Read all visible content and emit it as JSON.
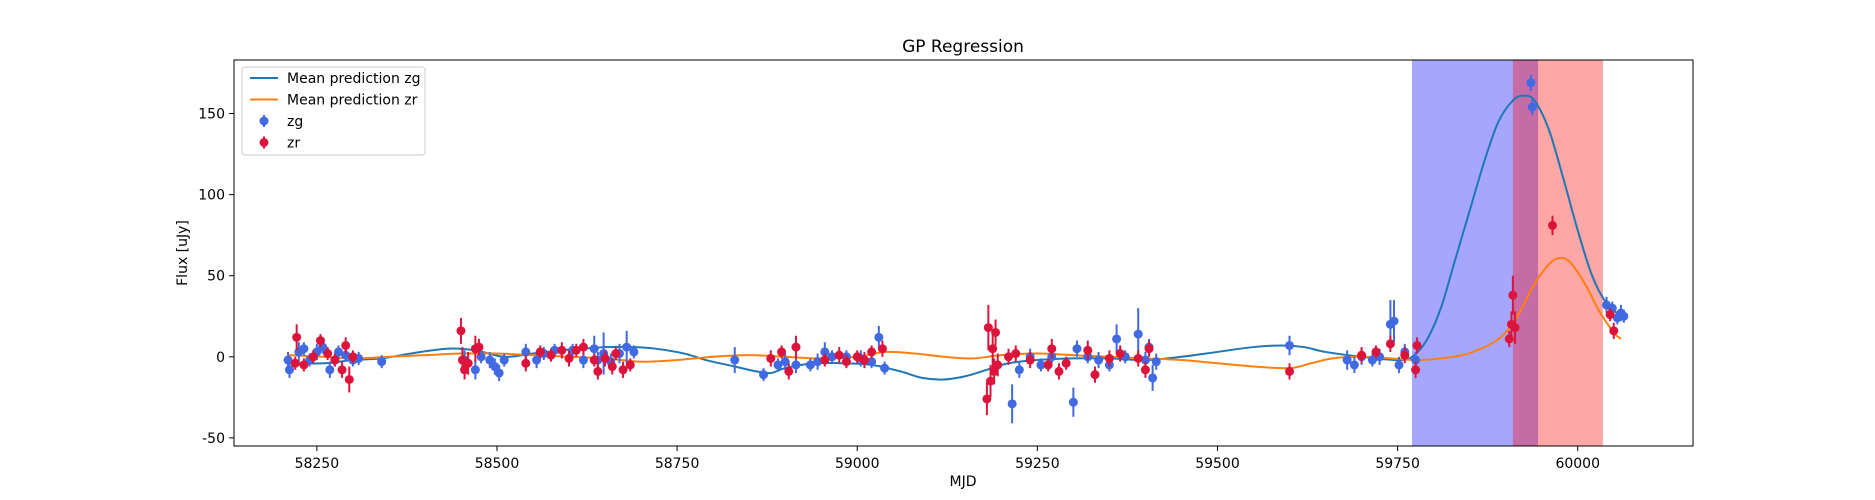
{
  "chart_data": {
    "type": "scatter",
    "title": "GP Regression",
    "xlabel": "MJD",
    "ylabel": "Flux [uJy]",
    "xlim": [
      58135,
      60160
    ],
    "ylim": [
      -55,
      183
    ],
    "xticks": [
      58250,
      58500,
      58750,
      59000,
      59250,
      59500,
      59750,
      60000
    ],
    "yticks": [
      -50,
      0,
      50,
      100,
      150
    ],
    "legend_position": "upper-left",
    "legend": [
      {
        "label": "Mean prediction zg",
        "kind": "line",
        "color": "#1f77b4"
      },
      {
        "label": "Mean prediction zr",
        "kind": "line",
        "color": "#ff7f0e"
      },
      {
        "label": "zg",
        "kind": "marker",
        "color": "#4169e1"
      },
      {
        "label": "zr",
        "kind": "marker",
        "color": "#dc143c"
      }
    ],
    "shaded_regions": [
      {
        "x0": 59770,
        "x1": 59945,
        "color": "#0000ff",
        "alpha": 0.35
      },
      {
        "x0": 59910,
        "x1": 60035,
        "color": "#ff0000",
        "alpha": 0.35
      }
    ],
    "curves": [
      {
        "name": "Mean prediction zg",
        "color": "#1f77b4",
        "points": [
          [
            58210,
            -4
          ],
          [
            58260,
            -4
          ],
          [
            58300,
            -2
          ],
          [
            58340,
            -1
          ],
          [
            58380,
            2
          ],
          [
            58430,
            5
          ],
          [
            58470,
            4
          ],
          [
            58510,
            0
          ],
          [
            58550,
            2
          ],
          [
            58590,
            4
          ],
          [
            58620,
            5
          ],
          [
            58650,
            6
          ],
          [
            58690,
            6
          ],
          [
            58720,
            5
          ],
          [
            58760,
            2
          ],
          [
            58790,
            -2
          ],
          [
            58830,
            -6
          ],
          [
            58860,
            -9
          ],
          [
            58880,
            -10
          ],
          [
            58900,
            -7
          ],
          [
            58940,
            -4
          ],
          [
            58980,
            -4
          ],
          [
            59020,
            -5
          ],
          [
            59060,
            -9
          ],
          [
            59090,
            -13
          ],
          [
            59120,
            -14
          ],
          [
            59150,
            -12
          ],
          [
            59180,
            -8
          ],
          [
            59210,
            -4
          ],
          [
            59250,
            -2
          ],
          [
            59300,
            -1
          ],
          [
            59350,
            -1
          ],
          [
            59400,
            -2
          ],
          [
            59450,
            0
          ],
          [
            59500,
            3
          ],
          [
            59550,
            6
          ],
          [
            59590,
            7
          ],
          [
            59620,
            6
          ],
          [
            59650,
            3
          ],
          [
            59700,
            0
          ],
          [
            59750,
            -2
          ],
          [
            59770,
            0
          ],
          [
            59790,
            10
          ],
          [
            59810,
            30
          ],
          [
            59830,
            60
          ],
          [
            59850,
            90
          ],
          [
            59870,
            120
          ],
          [
            59890,
            145
          ],
          [
            59910,
            158
          ],
          [
            59925,
            161
          ],
          [
            59940,
            158
          ],
          [
            59960,
            140
          ],
          [
            59980,
            110
          ],
          [
            60000,
            78
          ],
          [
            60020,
            50
          ],
          [
            60040,
            33
          ],
          [
            60060,
            25
          ]
        ]
      },
      {
        "name": "Mean prediction zr",
        "color": "#ff7f0e",
        "points": [
          [
            58210,
            1
          ],
          [
            58260,
            0
          ],
          [
            58300,
            -1
          ],
          [
            58350,
            0
          ],
          [
            58400,
            1
          ],
          [
            58450,
            2
          ],
          [
            58500,
            2
          ],
          [
            58550,
            1
          ],
          [
            58600,
            0
          ],
          [
            58650,
            -1
          ],
          [
            58700,
            -3
          ],
          [
            58750,
            -2
          ],
          [
            58800,
            0
          ],
          [
            58850,
            1
          ],
          [
            58900,
            0
          ],
          [
            58950,
            -1
          ],
          [
            59000,
            0
          ],
          [
            59040,
            3
          ],
          [
            59080,
            2
          ],
          [
            59120,
            0
          ],
          [
            59160,
            -1
          ],
          [
            59200,
            1
          ],
          [
            59250,
            2
          ],
          [
            59300,
            1
          ],
          [
            59350,
            0
          ],
          [
            59400,
            -1
          ],
          [
            59450,
            -2
          ],
          [
            59500,
            -4
          ],
          [
            59550,
            -6
          ],
          [
            59600,
            -7
          ],
          [
            59630,
            -4
          ],
          [
            59660,
            -1
          ],
          [
            59700,
            0
          ],
          [
            59740,
            -1
          ],
          [
            59780,
            -2
          ],
          [
            59810,
            -1
          ],
          [
            59840,
            1
          ],
          [
            59860,
            4
          ],
          [
            59880,
            8
          ],
          [
            59900,
            15
          ],
          [
            59920,
            28
          ],
          [
            59940,
            45
          ],
          [
            59960,
            57
          ],
          [
            59975,
            61
          ],
          [
            59990,
            58
          ],
          [
            60010,
            45
          ],
          [
            60030,
            28
          ],
          [
            60050,
            15
          ],
          [
            60060,
            11
          ]
        ]
      }
    ],
    "series": [
      {
        "name": "zg",
        "color": "#4169e1",
        "points": [
          [
            58210,
            -2,
            5
          ],
          [
            58212,
            -8,
            5
          ],
          [
            58225,
            3,
            6
          ],
          [
            58232,
            5,
            4
          ],
          [
            58240,
            -2,
            4
          ],
          [
            58250,
            3,
            5
          ],
          [
            58258,
            6,
            4
          ],
          [
            58268,
            -8,
            5
          ],
          [
            58275,
            -2,
            4
          ],
          [
            58280,
            3,
            4
          ],
          [
            58290,
            1,
            4
          ],
          [
            58300,
            -2,
            4
          ],
          [
            58308,
            -1,
            4
          ],
          [
            58340,
            -3,
            4
          ],
          [
            58455,
            -2,
            6
          ],
          [
            58470,
            -8,
            6
          ],
          [
            58478,
            0,
            4
          ],
          [
            58490,
            -2,
            5
          ],
          [
            58497,
            -6,
            5
          ],
          [
            58503,
            -10,
            5
          ],
          [
            58510,
            -2,
            4
          ],
          [
            58540,
            3,
            5
          ],
          [
            58555,
            -2,
            5
          ],
          [
            58565,
            2,
            4
          ],
          [
            58580,
            4,
            4
          ],
          [
            58605,
            4,
            4
          ],
          [
            58620,
            -2,
            5
          ],
          [
            58635,
            5,
            8
          ],
          [
            58640,
            -2,
            5
          ],
          [
            58648,
            2,
            13
          ],
          [
            58658,
            -3,
            5
          ],
          [
            58670,
            2,
            6
          ],
          [
            58680,
            6,
            10
          ],
          [
            58690,
            3,
            4
          ],
          [
            58830,
            -2,
            8
          ],
          [
            58870,
            -11,
            4
          ],
          [
            58890,
            -5,
            4
          ],
          [
            58900,
            -3,
            5
          ],
          [
            58915,
            -5,
            5
          ],
          [
            58935,
            -5,
            4
          ],
          [
            58945,
            -3,
            5
          ],
          [
            58955,
            3,
            6
          ],
          [
            58965,
            0,
            4
          ],
          [
            58985,
            0,
            4
          ],
          [
            59005,
            -1,
            5
          ],
          [
            59020,
            -3,
            4
          ],
          [
            59030,
            12,
            7
          ],
          [
            59038,
            -7,
            4
          ],
          [
            59215,
            -29,
            12
          ],
          [
            59225,
            -8,
            5
          ],
          [
            59240,
            0,
            5
          ],
          [
            59255,
            -5,
            4
          ],
          [
            59270,
            0,
            4
          ],
          [
            59300,
            -28,
            9
          ],
          [
            59305,
            5,
            5
          ],
          [
            59320,
            0,
            4
          ],
          [
            59335,
            -2,
            5
          ],
          [
            59350,
            -5,
            4
          ],
          [
            59360,
            11,
            9
          ],
          [
            59372,
            0,
            4
          ],
          [
            59390,
            14,
            16
          ],
          [
            59400,
            -2,
            5
          ],
          [
            59405,
            6,
            5
          ],
          [
            59410,
            -13,
            8
          ],
          [
            59415,
            -3,
            5
          ],
          [
            59600,
            7,
            6
          ],
          [
            59680,
            -2,
            6
          ],
          [
            59690,
            -5,
            5
          ],
          [
            59700,
            0,
            5
          ],
          [
            59715,
            -2,
            4
          ],
          [
            59725,
            0,
            5
          ],
          [
            59740,
            20,
            15
          ],
          [
            59745,
            22,
            13
          ],
          [
            59752,
            -5,
            5
          ],
          [
            59760,
            3,
            5
          ],
          [
            59775,
            -2,
            5
          ],
          [
            59935,
            169,
            5
          ],
          [
            59937,
            154,
            5
          ],
          [
            60040,
            32,
            5
          ],
          [
            60048,
            30,
            4
          ],
          [
            60055,
            24,
            4
          ],
          [
            60060,
            27,
            5
          ],
          [
            60064,
            25,
            4
          ]
        ]
      },
      {
        "name": "zr",
        "color": "#dc143c",
        "points": [
          [
            58220,
            -4,
            4
          ],
          [
            58222,
            12,
            8
          ],
          [
            58232,
            -5,
            4
          ],
          [
            58245,
            0,
            4
          ],
          [
            58255,
            10,
            4
          ],
          [
            58265,
            2,
            4
          ],
          [
            58275,
            -2,
            4
          ],
          [
            58285,
            -8,
            5
          ],
          [
            58290,
            7,
            5
          ],
          [
            58295,
            -14,
            8
          ],
          [
            58300,
            0,
            4
          ],
          [
            58450,
            16,
            8
          ],
          [
            58452,
            -2,
            8
          ],
          [
            58455,
            -8,
            6
          ],
          [
            58460,
            -4,
            7
          ],
          [
            58470,
            5,
            8
          ],
          [
            58475,
            6,
            5
          ],
          [
            58540,
            -4,
            5
          ],
          [
            58560,
            3,
            4
          ],
          [
            58575,
            1,
            4
          ],
          [
            58590,
            4,
            5
          ],
          [
            58600,
            -1,
            5
          ],
          [
            58610,
            4,
            4
          ],
          [
            58620,
            6,
            5
          ],
          [
            58635,
            -2,
            4
          ],
          [
            58640,
            -9,
            5
          ],
          [
            58650,
            -1,
            5
          ],
          [
            58660,
            -6,
            5
          ],
          [
            58665,
            2,
            4
          ],
          [
            58675,
            -8,
            5
          ],
          [
            58685,
            -5,
            4
          ],
          [
            58880,
            -1,
            5
          ],
          [
            58895,
            3,
            4
          ],
          [
            58905,
            -9,
            5
          ],
          [
            58915,
            6,
            7
          ],
          [
            58955,
            -2,
            4
          ],
          [
            58975,
            1,
            5
          ],
          [
            58985,
            -3,
            4
          ],
          [
            59000,
            0,
            4
          ],
          [
            59010,
            -2,
            5
          ],
          [
            59020,
            3,
            4
          ],
          [
            59035,
            5,
            5
          ],
          [
            59180,
            -26,
            10
          ],
          [
            59182,
            18,
            14
          ],
          [
            59185,
            -15,
            10
          ],
          [
            59188,
            5,
            12
          ],
          [
            59190,
            -9,
            8
          ],
          [
            59192,
            15,
            8
          ],
          [
            59195,
            -5,
            7
          ],
          [
            59210,
            0,
            5
          ],
          [
            59220,
            2,
            5
          ],
          [
            59240,
            -2,
            5
          ],
          [
            59265,
            -5,
            4
          ],
          [
            59270,
            5,
            6
          ],
          [
            59280,
            -9,
            5
          ],
          [
            59290,
            -4,
            4
          ],
          [
            59320,
            4,
            6
          ],
          [
            59330,
            -11,
            5
          ],
          [
            59350,
            -1,
            5
          ],
          [
            59365,
            2,
            5
          ],
          [
            59390,
            -1,
            5
          ],
          [
            59400,
            -8,
            5
          ],
          [
            59405,
            5,
            5
          ],
          [
            59600,
            -9,
            5
          ],
          [
            59700,
            1,
            5
          ],
          [
            59720,
            3,
            4
          ],
          [
            59740,
            8,
            5
          ],
          [
            59760,
            1,
            5
          ],
          [
            59775,
            -8,
            5
          ],
          [
            59777,
            7,
            5
          ],
          [
            59905,
            11,
            5
          ],
          [
            59908,
            20,
            8
          ],
          [
            59910,
            38,
            12
          ],
          [
            59913,
            18,
            10
          ],
          [
            59965,
            81,
            6
          ],
          [
            60045,
            26,
            4
          ],
          [
            60050,
            16,
            5
          ]
        ]
      }
    ]
  }
}
